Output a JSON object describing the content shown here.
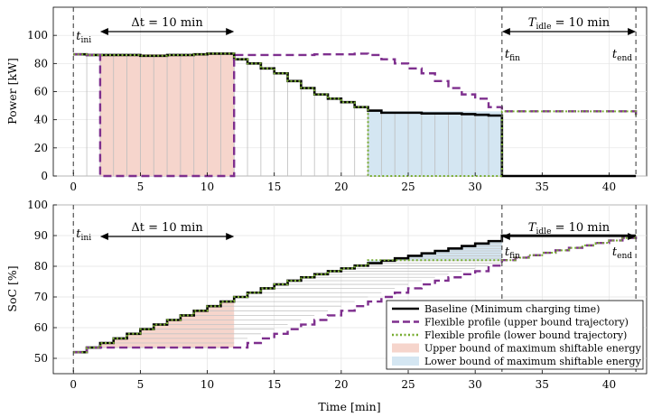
{
  "chart_data": [
    {
      "type": "line",
      "ylabel": "Power [kW]",
      "xlabel": "",
      "xlim": [
        -1.5,
        42.8
      ],
      "ylim": [
        0,
        120
      ],
      "xticks": [
        0,
        5,
        10,
        15,
        20,
        25,
        30,
        35,
        40
      ],
      "yticks": [
        0,
        20,
        40,
        60,
        80,
        100
      ],
      "grid": true,
      "annotations": {
        "t_ini": "t_ini",
        "t_fin": "t_fin",
        "t_end": "t_end",
        "delta_t": "Δt = 10 min",
        "t_idle": "T_idle = 10 min"
      },
      "series": [
        {
          "name": "Baseline (Minimum charging time)",
          "x": [
            0,
            1,
            2,
            3,
            4,
            5,
            6,
            7,
            8,
            9,
            10,
            11,
            12,
            13,
            14,
            15,
            16,
            17,
            18,
            19,
            20,
            21,
            22,
            23,
            24,
            25,
            26,
            27,
            28,
            29,
            30,
            31,
            32,
            42
          ],
          "y": [
            86.5,
            86,
            86,
            86,
            86,
            85.5,
            85.5,
            86,
            86,
            86.5,
            87,
            87,
            83,
            80,
            76.5,
            73,
            67.5,
            62.5,
            58,
            55,
            52.5,
            49,
            46.5,
            45,
            45,
            45,
            44.5,
            44.5,
            44.5,
            44,
            43.5,
            43,
            0,
            0
          ],
          "color": "#000000"
        },
        {
          "name": "Flexible profile (upper bound trajectory)",
          "x": [
            0,
            1,
            2,
            3,
            4,
            5,
            6,
            7,
            8,
            9,
            10,
            11,
            12,
            13,
            14,
            15,
            16,
            17,
            18,
            19,
            20,
            21,
            22,
            23,
            24,
            25,
            26,
            27,
            28,
            29,
            30,
            31,
            32,
            42
          ],
          "y": [
            86.5,
            86,
            0,
            0,
            0,
            0,
            0,
            0,
            0,
            0,
            0,
            0,
            86,
            86,
            86,
            86,
            86,
            86,
            86.5,
            86.5,
            86.5,
            87,
            86,
            83,
            80,
            76.5,
            73,
            67.5,
            62.5,
            58,
            55,
            49,
            46,
            43
          ],
          "color": "#7E2F8E"
        },
        {
          "name": "Flexible profile (lower bound trajectory)",
          "x": [
            0,
            1,
            2,
            3,
            4,
            5,
            6,
            7,
            8,
            9,
            10,
            11,
            12,
            13,
            14,
            15,
            16,
            17,
            18,
            19,
            20,
            21,
            22,
            23,
            24,
            25,
            26,
            27,
            28,
            29,
            30,
            31,
            32,
            42
          ],
          "y": [
            86.5,
            86,
            86,
            86,
            86,
            85.5,
            85.5,
            86,
            86,
            86.5,
            87,
            87,
            83,
            80,
            76.5,
            73,
            67.5,
            62.5,
            58,
            55,
            52.5,
            49,
            0,
            0,
            0,
            0,
            0,
            0,
            0,
            0,
            0,
            0,
            46,
            43
          ],
          "color": "#77AC30"
        }
      ],
      "shaded_regions": [
        {
          "name": "Upper bound of maximum shiftable energy",
          "x": [
            2,
            12
          ],
          "color": "#F6D5CC"
        },
        {
          "name": "Lower bound of maximum shiftable energy",
          "x": [
            22,
            32
          ],
          "color": "#D4E6F2"
        }
      ]
    },
    {
      "type": "line",
      "ylabel": "SoC [%]",
      "xlabel": "Time [min]",
      "xlim": [
        -1.5,
        42.8
      ],
      "ylim": [
        45,
        100
      ],
      "xticks": [
        0,
        5,
        10,
        15,
        20,
        25,
        30,
        35,
        40
      ],
      "yticks": [
        50,
        60,
        70,
        80,
        90,
        100
      ],
      "grid": true,
      "legend_position": "bottom-right",
      "annotations": {
        "t_ini": "t_ini",
        "t_fin": "t_fin",
        "t_end": "t_end",
        "delta_t": "Δt = 10 min",
        "t_idle": "T_idle = 10 min"
      },
      "series": [
        {
          "name": "Baseline (Minimum charging time)",
          "x": [
            0,
            1,
            2,
            3,
            4,
            5,
            6,
            7,
            8,
            9,
            10,
            11,
            12,
            13,
            14,
            15,
            16,
            17,
            18,
            19,
            20,
            21,
            22,
            23,
            24,
            25,
            26,
            27,
            28,
            29,
            30,
            31,
            32,
            42
          ],
          "y": [
            52,
            53.5,
            55,
            56.5,
            58,
            59.5,
            61,
            62.5,
            64,
            65.5,
            67,
            68.5,
            70,
            71.4,
            72.8,
            74.1,
            75.3,
            76.4,
            77.4,
            78.4,
            79.3,
            80.2,
            81,
            81.8,
            82.6,
            83.4,
            84.2,
            85,
            85.8,
            86.6,
            87.4,
            88.2,
            90,
            90
          ],
          "color": "#000000"
        },
        {
          "name": "Flexible profile (upper bound trajectory)",
          "x": [
            0,
            1,
            2,
            12,
            13,
            14,
            15,
            16,
            17,
            18,
            19,
            20,
            21,
            22,
            23,
            24,
            25,
            26,
            27,
            28,
            29,
            30,
            31,
            32,
            33,
            34,
            35,
            36,
            37,
            38,
            39,
            40,
            41,
            42
          ],
          "y": [
            52,
            53.5,
            53.5,
            53.5,
            55,
            56.5,
            58,
            59.5,
            61,
            62.5,
            64,
            65.5,
            67,
            68.5,
            70,
            71.4,
            72.8,
            74.1,
            75.3,
            76.4,
            77.4,
            78.4,
            80.2,
            82,
            82.8,
            83.6,
            84.4,
            85.2,
            86,
            86.8,
            87.6,
            88.4,
            89.2,
            90
          ],
          "color": "#7E2F8E"
        },
        {
          "name": "Flexible profile (lower bound trajectory)",
          "x": [
            0,
            1,
            2,
            3,
            4,
            5,
            6,
            7,
            8,
            9,
            10,
            11,
            12,
            13,
            14,
            15,
            16,
            17,
            18,
            19,
            20,
            21,
            22,
            32,
            33,
            34,
            35,
            36,
            37,
            38,
            39,
            40,
            41,
            42
          ],
          "y": [
            52,
            53.5,
            55,
            56.5,
            58,
            59.5,
            61,
            62.5,
            64,
            65.5,
            67,
            68.5,
            70,
            71.4,
            72.8,
            74.1,
            75.3,
            76.4,
            77.4,
            78.4,
            79.3,
            80.2,
            82,
            82,
            82.8,
            83.6,
            84.4,
            85.2,
            86,
            86.8,
            87.6,
            88.4,
            89.2,
            90
          ],
          "color": "#77AC30"
        }
      ],
      "shaded_regions": [
        {
          "name": "Upper bound of maximum shiftable energy",
          "x": [
            2,
            12
          ],
          "color": "#F6D5CC"
        },
        {
          "name": "Lower bound of maximum shiftable energy",
          "x": [
            22,
            32
          ],
          "color": "#D4E6F2"
        }
      ]
    }
  ],
  "legend": [
    {
      "label": "Baseline (Minimum charging time)",
      "style": "solid",
      "color": "#000000"
    },
    {
      "label": "Flexible profile (upper bound trajectory)",
      "style": "dashed",
      "color": "#7E2F8E"
    },
    {
      "label": "Flexible profile (lower bound trajectory)",
      "style": "dotted",
      "color": "#77AC30"
    },
    {
      "label": "Upper bound of maximum shiftable energy",
      "style": "patch",
      "color": "#F6D5CC"
    },
    {
      "label": "Lower bound of maximum shiftable energy",
      "style": "patch",
      "color": "#D4E6F2"
    }
  ]
}
